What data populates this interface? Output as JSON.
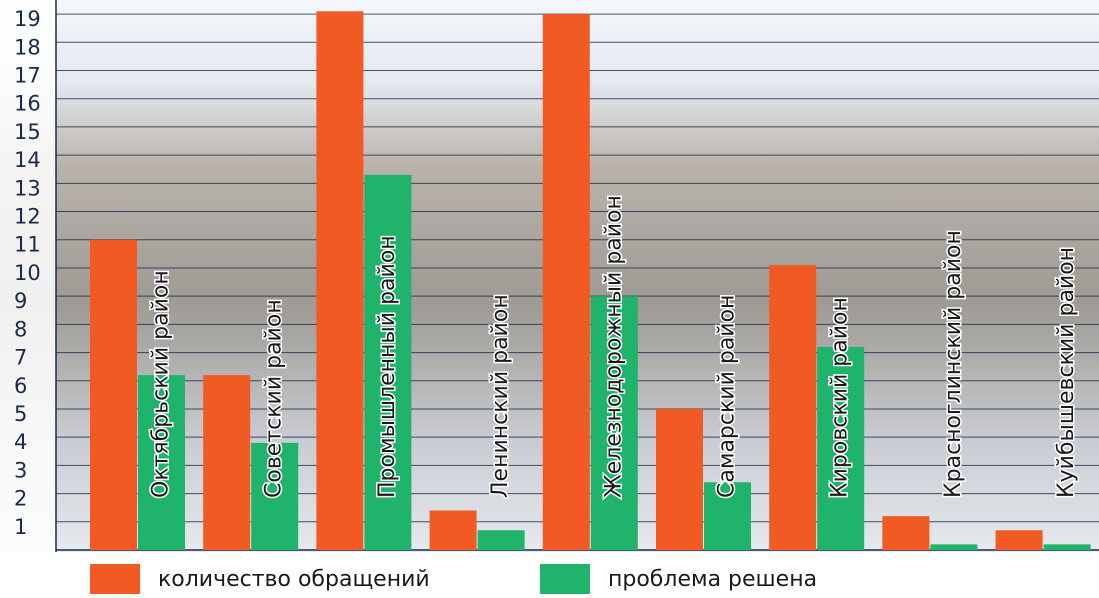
{
  "chart_data": {
    "type": "bar",
    "categories": [
      "Октябрьский район",
      "Советский район",
      "Промышленный район",
      "Ленинский район",
      "Железнодорожный район",
      "Самарский район",
      "Кировский район",
      "Красноглинский район",
      "Куйбышевский район"
    ],
    "series": [
      {
        "name": "количество обращений",
        "color": "#f15a22",
        "values": [
          11.0,
          6.2,
          19.1,
          1.4,
          19.0,
          5.0,
          10.1,
          1.2,
          0.7
        ]
      },
      {
        "name": "проблема решена",
        "color": "#1fb36b",
        "values": [
          6.2,
          3.8,
          13.3,
          0.7,
          9.0,
          2.4,
          7.2,
          0.2,
          0.2
        ]
      }
    ],
    "ylim": [
      0,
      19.5
    ],
    "yticks": [
      1,
      2,
      3,
      4,
      5,
      6,
      7,
      8,
      9,
      10,
      11,
      12,
      13,
      14,
      15,
      16,
      17,
      18,
      19
    ],
    "grid": true
  }
}
